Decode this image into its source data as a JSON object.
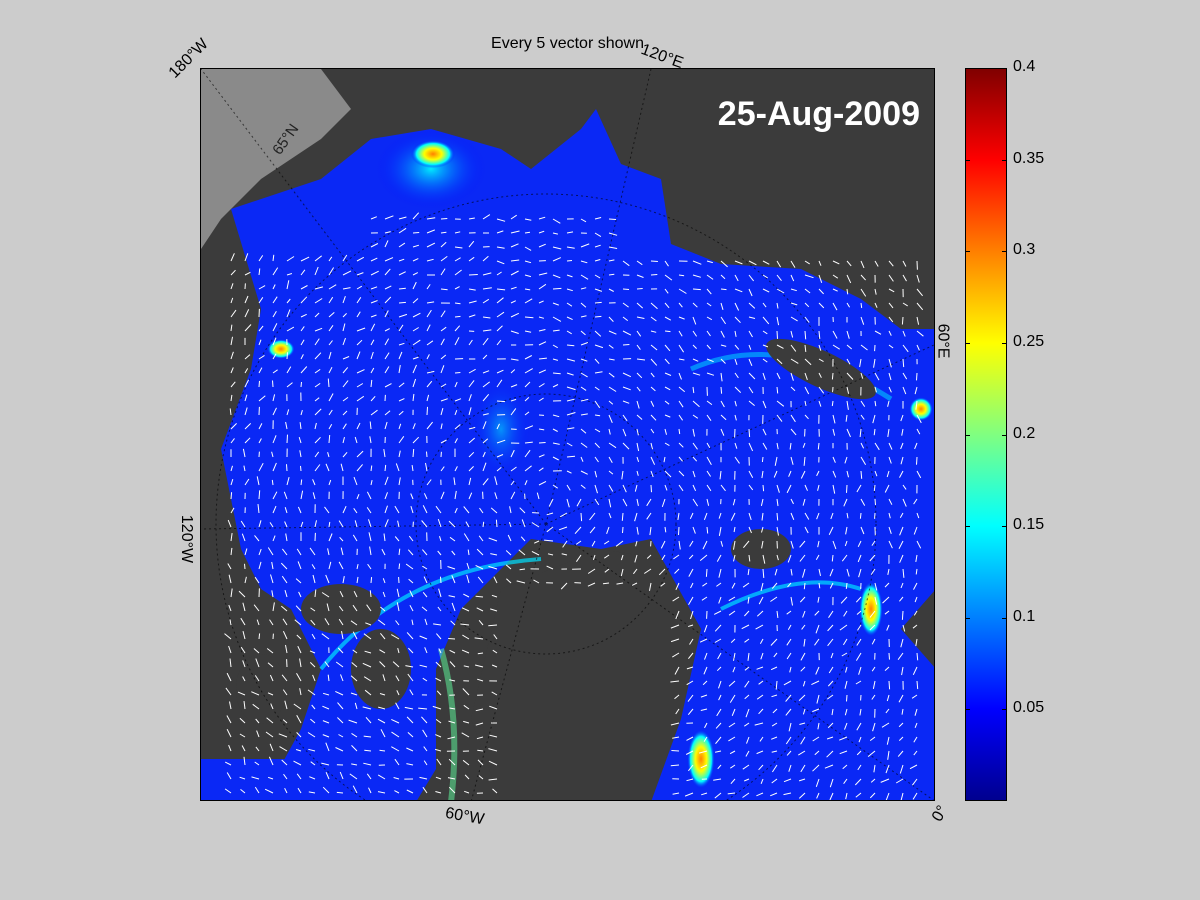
{
  "figure": {
    "title": "Every 5 vector shown",
    "date": "25-Aug-2009"
  },
  "map": {
    "longitude_labels": [
      "180°W",
      "120°E",
      "60°E",
      "0°",
      "60°W",
      "120°W"
    ],
    "latitude_labels": [
      "65°N"
    ],
    "colors": {
      "ocean_low": "#0000ff",
      "land": "#3b3b3b",
      "no_data": "#8a8a8a",
      "vectors": "#ffffff"
    }
  },
  "colorbar": {
    "min": 0,
    "max": 0.4,
    "tick_labels": [
      "0.4",
      "0.35",
      "0.3",
      "0.25",
      "0.2",
      "0.15",
      "0.1",
      "0.05"
    ],
    "colormap": "jet"
  }
}
